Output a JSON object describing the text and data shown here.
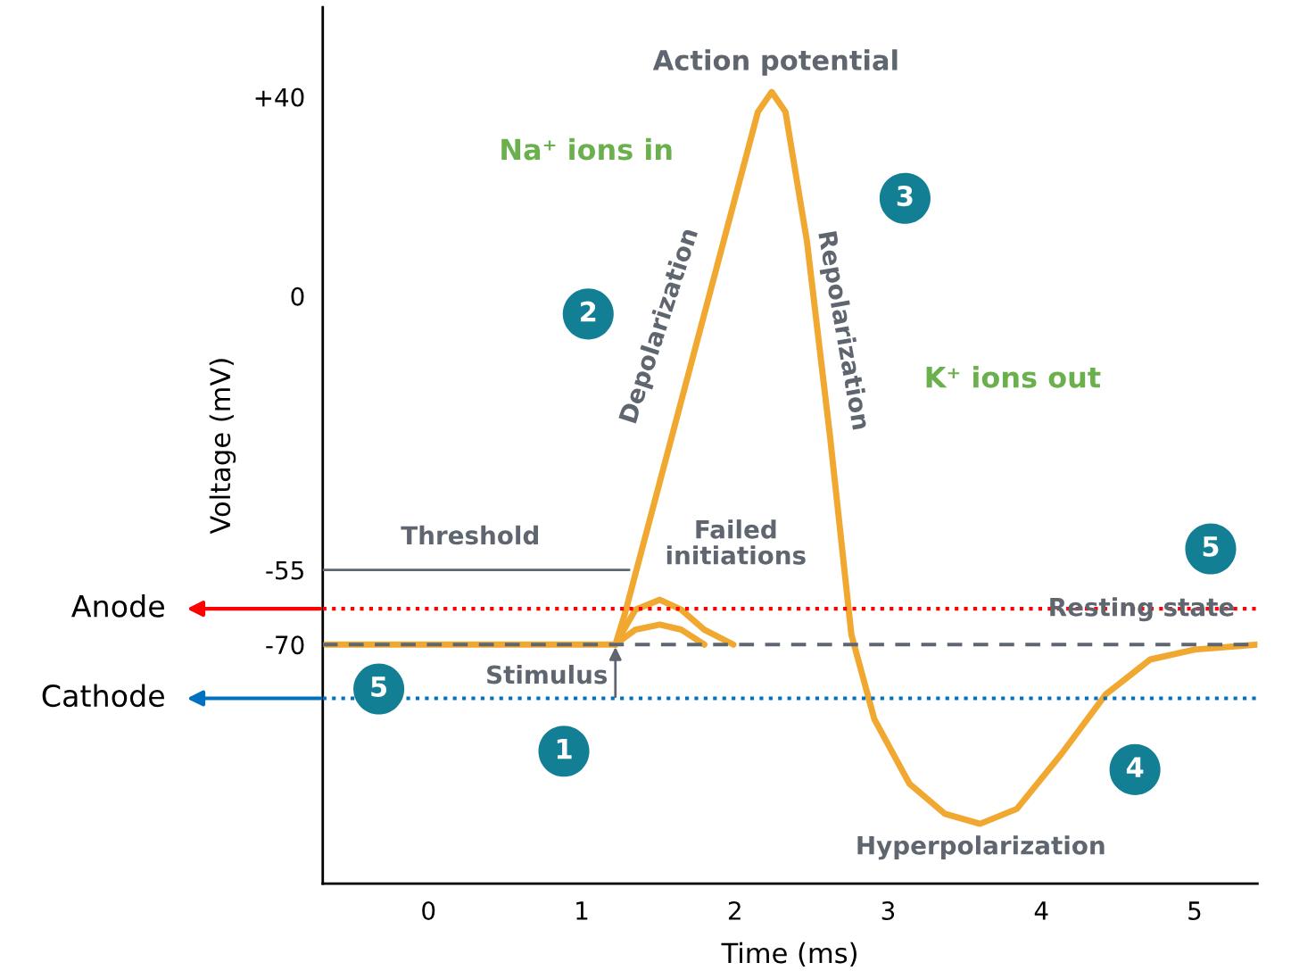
{
  "chart_data": {
    "type": "line",
    "xlabel": "Time (ms)",
    "ylabel": "Voltage (mV)",
    "xlim": [
      -0.69,
      5.41
    ],
    "ylim": [
      -118,
      58
    ],
    "xticks": [
      0,
      1,
      2,
      3,
      4,
      5
    ],
    "yticks": [
      {
        "value": 40,
        "label": "+40"
      },
      0,
      -55,
      -70
    ],
    "grid": false,
    "legend": false,
    "series": [
      {
        "color": "#f0a830",
        "x": [
          -0.67,
          1.22,
          1.28,
          2.15,
          2.24,
          2.33,
          2.47,
          2.62,
          2.76,
          2.91,
          3.14,
          3.37,
          3.6,
          3.84,
          4.13,
          4.42,
          4.71,
          5.0,
          5.41
        ],
        "values": [
          -70,
          -70,
          -64,
          37,
          41,
          37,
          11,
          -28,
          -68,
          -85,
          -98,
          -104,
          -106,
          -103,
          -92,
          -80,
          -73,
          -71,
          -70
        ]
      },
      {
        "color": "#f0a830",
        "x": [
          1.22,
          1.35,
          1.51,
          1.65,
          1.8,
          1.99
        ],
        "values": [
          -70,
          -63,
          -61,
          -63,
          -67,
          -70
        ]
      },
      {
        "color": "#f0a830",
        "x": [
          1.22,
          1.35,
          1.51,
          1.65,
          1.8
        ],
        "values": [
          -70,
          -67,
          -66,
          -67,
          -70
        ]
      },
      {
        "color": "#5f6670",
        "x": [
          -0.69,
          1.31
        ],
        "values": [
          -55,
          -55
        ]
      }
    ],
    "ref_lines": [
      {
        "axis": "y",
        "value": -70,
        "color": "#5f6670",
        "line_style": "dashed"
      },
      {
        "axis": "y",
        "value": -62.8,
        "label": "Anode",
        "color": "#ff0000",
        "line_style": "dotted"
      },
      {
        "axis": "y",
        "value": -80.8,
        "label": "Cathode",
        "color": "#0070c0",
        "line_style": "dotted"
      }
    ],
    "annotations": [
      "Action potential",
      "Na⁺ ions in",
      "Depolarization",
      "Repolarization",
      "K⁺ ions out",
      "Failed\ninitiations",
      "Threshold",
      "Resting state",
      {
        "text": "Stimulus",
        "x": 1.22,
        "y": -70
      },
      "Hyperpolarization",
      "1",
      "2",
      "3",
      "4",
      "5",
      "5"
    ]
  }
}
